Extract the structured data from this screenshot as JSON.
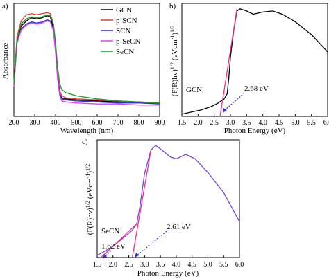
{
  "chart_data": [
    {
      "type": "line",
      "panel_label": "a)",
      "xlabel": "Wavelength (nm)",
      "ylabel": "Absorbance",
      "xlim": [
        200,
        900
      ],
      "xticks": [
        200,
        300,
        400,
        500,
        600,
        700,
        800,
        900
      ],
      "legend_position": "top-right",
      "series": [
        {
          "name": "GCN",
          "color": "#000000",
          "x": [
            200,
            215,
            235,
            260,
            285,
            310,
            335,
            360,
            375,
            390,
            400,
            410,
            420,
            430,
            450,
            500,
            600,
            700,
            800,
            900
          ],
          "y": [
            0.3,
            0.74,
            0.88,
            0.93,
            0.96,
            0.95,
            0.96,
            0.98,
            0.97,
            0.86,
            0.65,
            0.38,
            0.22,
            0.18,
            0.17,
            0.16,
            0.15,
            0.14,
            0.14,
            0.13
          ]
        },
        {
          "name": "p-SCN",
          "color": "#e8382f",
          "x": [
            200,
            215,
            235,
            260,
            285,
            310,
            335,
            360,
            375,
            390,
            400,
            410,
            420,
            430,
            450,
            500,
            600,
            700,
            800,
            900
          ],
          "y": [
            0.32,
            0.78,
            0.93,
            0.99,
            1.0,
            0.99,
            1.0,
            1.01,
            1.0,
            0.9,
            0.7,
            0.42,
            0.25,
            0.2,
            0.18,
            0.17,
            0.16,
            0.15,
            0.14,
            0.13
          ]
        },
        {
          "name": "SCN",
          "color": "#2b2fd6",
          "x": [
            200,
            215,
            235,
            260,
            285,
            310,
            335,
            360,
            375,
            390,
            400,
            410,
            420,
            430,
            450,
            500,
            600,
            700,
            800,
            900
          ],
          "y": [
            0.3,
            0.72,
            0.85,
            0.9,
            0.92,
            0.91,
            0.92,
            0.94,
            0.93,
            0.84,
            0.64,
            0.38,
            0.22,
            0.17,
            0.16,
            0.15,
            0.14,
            0.13,
            0.13,
            0.12
          ]
        },
        {
          "name": "p-SeCN",
          "color": "#e040f0",
          "x": [
            200,
            215,
            235,
            260,
            285,
            310,
            335,
            360,
            375,
            390,
            400,
            410,
            420,
            430,
            450,
            500,
            600,
            700,
            800,
            900
          ],
          "y": [
            0.29,
            0.71,
            0.84,
            0.89,
            0.91,
            0.9,
            0.91,
            0.93,
            0.92,
            0.83,
            0.62,
            0.36,
            0.2,
            0.15,
            0.14,
            0.13,
            0.12,
            0.12,
            0.11,
            0.11
          ]
        },
        {
          "name": "SeCN",
          "color": "#1f9a2a",
          "x": [
            200,
            215,
            235,
            260,
            285,
            310,
            335,
            360,
            375,
            390,
            400,
            410,
            420,
            430,
            450,
            500,
            600,
            700,
            800,
            900
          ],
          "y": [
            0.31,
            0.75,
            0.9,
            0.95,
            0.97,
            0.96,
            0.97,
            0.99,
            0.98,
            0.9,
            0.72,
            0.48,
            0.32,
            0.26,
            0.23,
            0.2,
            0.17,
            0.15,
            0.14,
            0.13
          ]
        }
      ]
    },
    {
      "type": "line",
      "panel_label": "b)",
      "xlabel": "Photon Energy (eV)",
      "ylabel": "(F(R)hv)1/2 (eVcm-1)1/2",
      "ylabel_main": "(F(R)hv)",
      "ylabel_exp": "1/2",
      "ylabel_unit": "(eVcm",
      "ylabel_unit_exp": "-1",
      "ylabel_close": ")",
      "ylabel_close_exp": "1/2",
      "xlim": [
        1.5,
        6.0
      ],
      "xticks": [
        "1.5",
        "2.0",
        "2.5",
        "3.0",
        "3.5",
        "4.0",
        "4.5",
        "5.0",
        "5.5",
        "6.0"
      ],
      "series_label": "GCN",
      "annotation": "2.68 eV",
      "series": [
        {
          "name": "GCN",
          "color": "#000000",
          "x": [
            1.5,
            1.8,
            2.1,
            2.4,
            2.6,
            2.8,
            2.9,
            2.95,
            3.0,
            3.1,
            3.2,
            3.3,
            3.5,
            3.7,
            4.0,
            4.3,
            4.6,
            5.0,
            5.5,
            6.0
          ],
          "y": [
            0.02,
            0.04,
            0.06,
            0.09,
            0.12,
            0.16,
            0.21,
            0.36,
            0.55,
            0.8,
            0.98,
            1.0,
            0.98,
            0.95,
            0.97,
            0.98,
            0.95,
            0.88,
            0.76,
            0.6
          ]
        }
      ],
      "fit": {
        "color": "#e8338a",
        "x": [
          2.68,
          3.2
        ],
        "y": [
          0.0,
          1.0
        ]
      }
    },
    {
      "type": "line",
      "panel_label": "c)",
      "xlabel": "Photon Energy (eV)",
      "ylabel": "(F(R)hv)1/2 (eVcm-1)1/2",
      "ylabel_main": "(F(R)hv)",
      "ylabel_exp": "1/2",
      "ylabel_unit": "(eVcm",
      "ylabel_unit_exp": "-1",
      "ylabel_close": ")",
      "ylabel_close_exp": "1/2",
      "xlim": [
        1.5,
        6.0
      ],
      "xticks": [
        "1.5",
        "2.0",
        "2.5",
        "3.0",
        "3.5",
        "4.0",
        "4.5",
        "5.0",
        "5.5",
        "6.0"
      ],
      "series_label": "SeCN",
      "annotations": [
        "1.62 eV",
        "2.61 eV"
      ],
      "series": [
        {
          "name": "SeCN",
          "color": "#7a3fd6",
          "x": [
            1.5,
            1.7,
            2.0,
            2.3,
            2.6,
            2.75,
            2.85,
            3.0,
            3.2,
            3.35,
            3.5,
            3.8,
            4.0,
            4.3,
            4.6,
            5.0,
            5.5,
            6.0
          ],
          "y": [
            0.02,
            0.05,
            0.1,
            0.17,
            0.24,
            0.3,
            0.45,
            0.75,
            0.96,
            1.0,
            0.97,
            0.9,
            0.88,
            0.92,
            0.88,
            0.76,
            0.58,
            0.32
          ]
        }
      ],
      "fits": [
        {
          "color": "#e8338a",
          "x": [
            1.62,
            2.75
          ],
          "y": [
            0.0,
            0.3
          ]
        },
        {
          "color": "#e8338a",
          "x": [
            2.61,
            3.2
          ],
          "y": [
            0.0,
            0.96
          ]
        }
      ]
    }
  ]
}
